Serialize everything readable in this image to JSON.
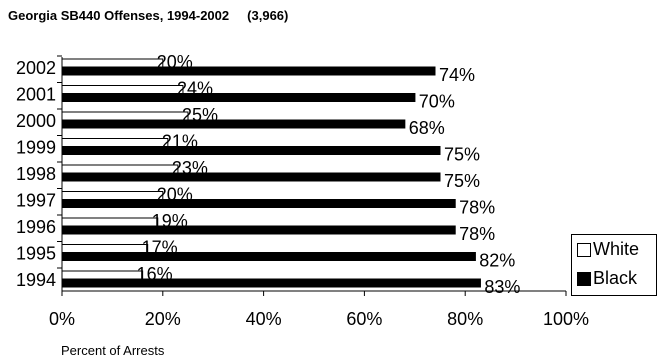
{
  "chart_data": {
    "type": "bar",
    "orientation": "horizontal",
    "title": "Georgia SB440 Offenses, 1994-2002     (3,966)",
    "xlabel": "Percent of Arrests",
    "ylabel": "",
    "xlim": [
      0,
      100
    ],
    "x_ticks": [
      "0%",
      "20%",
      "40%",
      "60%",
      "80%",
      "100%"
    ],
    "categories": [
      "2002",
      "2001",
      "2000",
      "1999",
      "1998",
      "1997",
      "1996",
      "1995",
      "1994"
    ],
    "series": [
      {
        "name": "White",
        "values": [
          20,
          24,
          25,
          21,
          23,
          20,
          19,
          17,
          16
        ],
        "labels": [
          "20%",
          "24%",
          "25%",
          "21%",
          "23%",
          "20%",
          "19%",
          "17%",
          "16%"
        ],
        "color": "#ffffff"
      },
      {
        "name": "Black",
        "values": [
          74,
          70,
          68,
          75,
          75,
          78,
          78,
          82,
          83
        ],
        "labels": [
          "74%",
          "70%",
          "68%",
          "75%",
          "75%",
          "78%",
          "78%",
          "82%",
          "83%"
        ],
        "color": "#000000"
      }
    ],
    "grid": false,
    "legend_position": "bottom-right"
  }
}
